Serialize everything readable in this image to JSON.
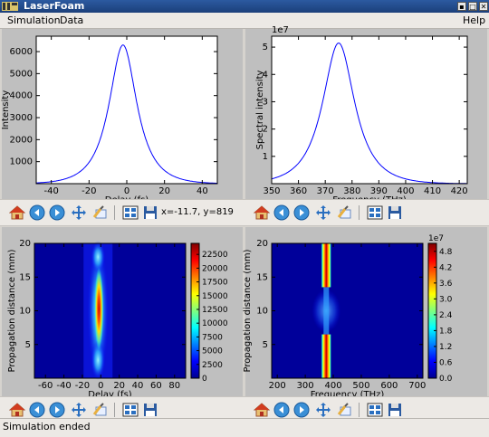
{
  "window": {
    "title": "LaserFoam"
  },
  "menu": {
    "simulation": "Simulation",
    "data": "Data",
    "help": "Help"
  },
  "status": {
    "text": "Simulation ended"
  },
  "toolbar": {
    "coord_readout": "x=-11.7, y=819"
  },
  "chart_data": [
    {
      "type": "line",
      "xlabel": "Delay (fs)",
      "ylabel": "Intensity",
      "xlim": [
        -48,
        48
      ],
      "ylim": [
        0,
        6700
      ],
      "x_ticks": [
        -40,
        -20,
        0,
        20,
        40
      ],
      "y_ticks": [
        1000,
        2000,
        3000,
        4000,
        5000,
        6000
      ],
      "series": [
        {
          "peak_x": -2,
          "peak_y": 6300,
          "width_fs": 8,
          "color": "#0000ff"
        }
      ]
    },
    {
      "type": "line",
      "xlabel": "Frequency (THz)",
      "ylabel": "Spectral intensity",
      "y_multiplier": "1e7",
      "xlim": [
        350,
        423
      ],
      "ylim": [
        0,
        5.4
      ],
      "x_ticks": [
        350,
        360,
        370,
        380,
        390,
        400,
        410,
        420
      ],
      "y_ticks": [
        1,
        2,
        3,
        4,
        5
      ],
      "series": [
        {
          "peak_x": 375,
          "peak_y": 5.15,
          "width_thz": 6.5,
          "color": "#0000ff"
        }
      ]
    },
    {
      "type": "heatmap",
      "xlabel": "Delay (fs)",
      "ylabel": "Propagation distance (mm)",
      "xlim": [
        -72,
        92
      ],
      "ylim": [
        0,
        20
      ],
      "x_ticks": [
        -60,
        -40,
        -20,
        0,
        20,
        40,
        60,
        80
      ],
      "y_ticks": [
        5,
        10,
        15,
        20
      ],
      "colorbar_ticks": [
        0,
        2500,
        5000,
        7500,
        10000,
        12500,
        15000,
        17500,
        20000,
        22500
      ],
      "colorbar_max": 24500
    },
    {
      "type": "heatmap",
      "xlabel": "Frequency (THz)",
      "ylabel": "Propagation distance (mm)",
      "xlim": [
        180,
        720
      ],
      "ylim": [
        0,
        20
      ],
      "x_ticks": [
        200,
        300,
        400,
        500,
        600,
        700
      ],
      "y_ticks": [
        5,
        10,
        15,
        20
      ],
      "colorbar_multiplier": "1e7",
      "colorbar_ticks": [
        "0.0",
        "0.6",
        "1.2",
        "1.8",
        "2.4",
        "3.0",
        "3.6",
        "4.2",
        "4.8"
      ],
      "colorbar_max": 5.1
    }
  ]
}
